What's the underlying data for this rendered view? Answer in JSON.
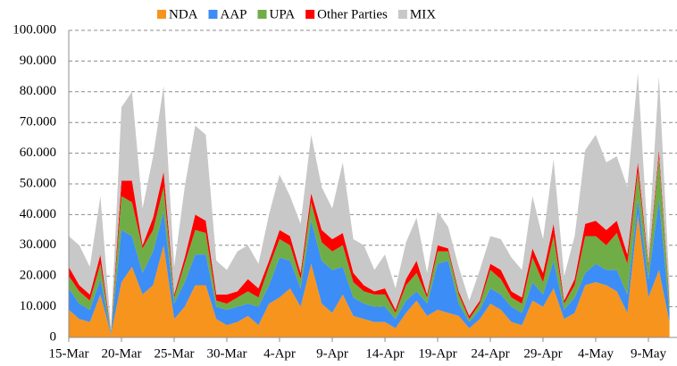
{
  "chart_data": {
    "type": "stacked_area",
    "categories": [
      "15-Mar",
      null,
      null,
      null,
      null,
      "20-Mar",
      null,
      null,
      null,
      null,
      "25-Mar",
      null,
      null,
      null,
      null,
      "30-Mar",
      null,
      null,
      null,
      null,
      "4-Apr",
      null,
      null,
      null,
      null,
      "9-Apr",
      null,
      null,
      null,
      null,
      "14-Apr",
      null,
      null,
      null,
      null,
      "19-Apr",
      null,
      null,
      null,
      null,
      "24-Apr",
      null,
      null,
      null,
      null,
      "29-Apr",
      null,
      null,
      null,
      null,
      "4-May",
      null,
      null,
      null,
      null,
      "9-May",
      null,
      null
    ],
    "series": [
      {
        "name": "NDA",
        "color": "#f7941d",
        "values": [
          9,
          6,
          5,
          14,
          1,
          18,
          23,
          14,
          17,
          30,
          6,
          10,
          17,
          17,
          6,
          4,
          5,
          7,
          4,
          11,
          13,
          16,
          10,
          24,
          11,
          8,
          14,
          7,
          6,
          5,
          5,
          3,
          8,
          12,
          7,
          9,
          8,
          7,
          3,
          6,
          11,
          9,
          5,
          4,
          12,
          10,
          16,
          6,
          8,
          17,
          18,
          17,
          15,
          8,
          40,
          13,
          22,
          5
        ]
      },
      {
        "name": "AAP",
        "color": "#3c8df5",
        "values": [
          7,
          5,
          4,
          5,
          0.5,
          17,
          10,
          7,
          11,
          11,
          5,
          8,
          10,
          10,
          4,
          5,
          5,
          4,
          6,
          6,
          13,
          9,
          6,
          14,
          14,
          14,
          9,
          6,
          5,
          5,
          5,
          3,
          4,
          3,
          4,
          15,
          17,
          4,
          2,
          3,
          5,
          5,
          5,
          4,
          6,
          4,
          9,
          3,
          5,
          4,
          6,
          5,
          7,
          6,
          5,
          6,
          23,
          3
        ]
      },
      {
        "name": "UPA",
        "color": "#70ad47",
        "values": [
          4,
          4,
          3,
          5,
          0.3,
          11,
          11,
          8,
          7,
          8,
          2,
          6,
          8,
          7,
          2,
          2,
          3,
          4,
          3,
          6,
          6,
          5,
          3,
          6,
          6,
          6,
          7,
          5,
          4,
          4,
          4,
          2,
          5,
          6,
          2,
          4,
          3,
          3,
          1,
          2,
          6,
          5,
          3,
          3,
          8,
          4,
          8,
          2,
          4,
          12,
          9,
          8,
          12,
          10,
          9,
          4,
          14,
          3
        ]
      },
      {
        "name": "Other Parties",
        "color": "#ff0000",
        "values": [
          3,
          2,
          2,
          3,
          0.2,
          5,
          7,
          1,
          4,
          5,
          1,
          2,
          5,
          4,
          2,
          3,
          2,
          4,
          3,
          2,
          3,
          3,
          2,
          3,
          4,
          4,
          4,
          3,
          2,
          1,
          2,
          1,
          2,
          4,
          1,
          2,
          1,
          1,
          1,
          1,
          2,
          3,
          2,
          2,
          3,
          3,
          4,
          1,
          2,
          4,
          5,
          5,
          4,
          3,
          3,
          1,
          2,
          1
        ]
      },
      {
        "name": "MIX",
        "color": "#c8c8c8",
        "values": [
          10,
          13,
          9,
          19,
          1,
          24,
          29,
          12,
          20,
          28,
          9,
          23,
          29,
          28,
          11,
          8,
          13,
          11,
          8,
          15,
          18,
          13,
          16,
          19,
          14,
          10,
          23,
          11,
          13,
          7,
          11,
          7,
          12,
          14,
          7,
          11,
          7,
          8,
          5,
          10,
          9,
          10,
          11,
          9,
          17,
          11,
          21,
          8,
          14,
          24,
          28,
          22,
          21,
          22,
          29,
          5,
          24,
          5
        ]
      }
    ],
    "ylim": [
      0,
      100
    ],
    "yticks": [
      0,
      {
        "value": 10,
        "label": "10.000"
      },
      {
        "value": 20,
        "label": "20.000"
      },
      {
        "value": 30,
        "label": "30.000"
      },
      {
        "value": 40,
        "label": "40.000"
      },
      {
        "value": 50,
        "label": "50.000"
      },
      {
        "value": 60,
        "label": "60.000"
      },
      {
        "value": 70,
        "label": "70.000"
      },
      {
        "value": 80,
        "label": "80.000"
      },
      {
        "value": 90,
        "label": "90.000"
      },
      {
        "value": 100,
        "label": "100.000"
      }
    ],
    "grid": true,
    "legend": "top"
  }
}
